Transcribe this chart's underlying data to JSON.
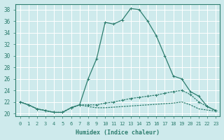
{
  "xlabel": "Humidex (Indice chaleur)",
  "bg_color": "#ceeaec",
  "grid_color": "#ffffff",
  "line_color": "#2d7d6e",
  "xlim": [
    -0.5,
    23.5
  ],
  "ylim": [
    19.5,
    39
  ],
  "yticks": [
    20,
    22,
    24,
    26,
    28,
    30,
    32,
    34,
    36,
    38
  ],
  "xticks": [
    0,
    1,
    2,
    3,
    4,
    5,
    6,
    7,
    8,
    9,
    10,
    11,
    12,
    13,
    14,
    15,
    16,
    17,
    18,
    19,
    20,
    21,
    22,
    23
  ],
  "series1_x": [
    0,
    1,
    2,
    3,
    4,
    5,
    6,
    7,
    8,
    9,
    10,
    11,
    12,
    13,
    14,
    15,
    16,
    17,
    18,
    19,
    20,
    21,
    22,
    23
  ],
  "series1_y": [
    22,
    21.5,
    20.8,
    20.5,
    20.2,
    20.2,
    21.0,
    21.5,
    26.0,
    29.5,
    35.8,
    35.5,
    36.2,
    38.2,
    38.0,
    36.0,
    33.5,
    30.0,
    26.5,
    26.0,
    23.8,
    23.0,
    21.2,
    20.5
  ],
  "series2_x": [
    0,
    1,
    2,
    3,
    4,
    5,
    6,
    7,
    8,
    9,
    10,
    11,
    12,
    13,
    14,
    15,
    16,
    17,
    18,
    19,
    20,
    21,
    22,
    23
  ],
  "series2_y": [
    22,
    21.5,
    20.8,
    20.5,
    20.2,
    20.2,
    21.0,
    21.5,
    21.5,
    21.5,
    21.8,
    22.0,
    22.3,
    22.6,
    22.8,
    23.0,
    23.2,
    23.5,
    23.8,
    24.0,
    23.3,
    22.0,
    21.2,
    20.5
  ],
  "series3_x": [
    0,
    1,
    2,
    3,
    4,
    5,
    6,
    7,
    8,
    9,
    10,
    11,
    12,
    13,
    14,
    15,
    16,
    17,
    18,
    19,
    20,
    21,
    22,
    23
  ],
  "series3_y": [
    22,
    21.5,
    20.8,
    20.5,
    20.2,
    20.2,
    21.0,
    21.5,
    21.2,
    21.0,
    21.0,
    21.1,
    21.2,
    21.3,
    21.4,
    21.5,
    21.6,
    21.7,
    21.8,
    22.0,
    21.5,
    20.8,
    20.6,
    20.4
  ]
}
